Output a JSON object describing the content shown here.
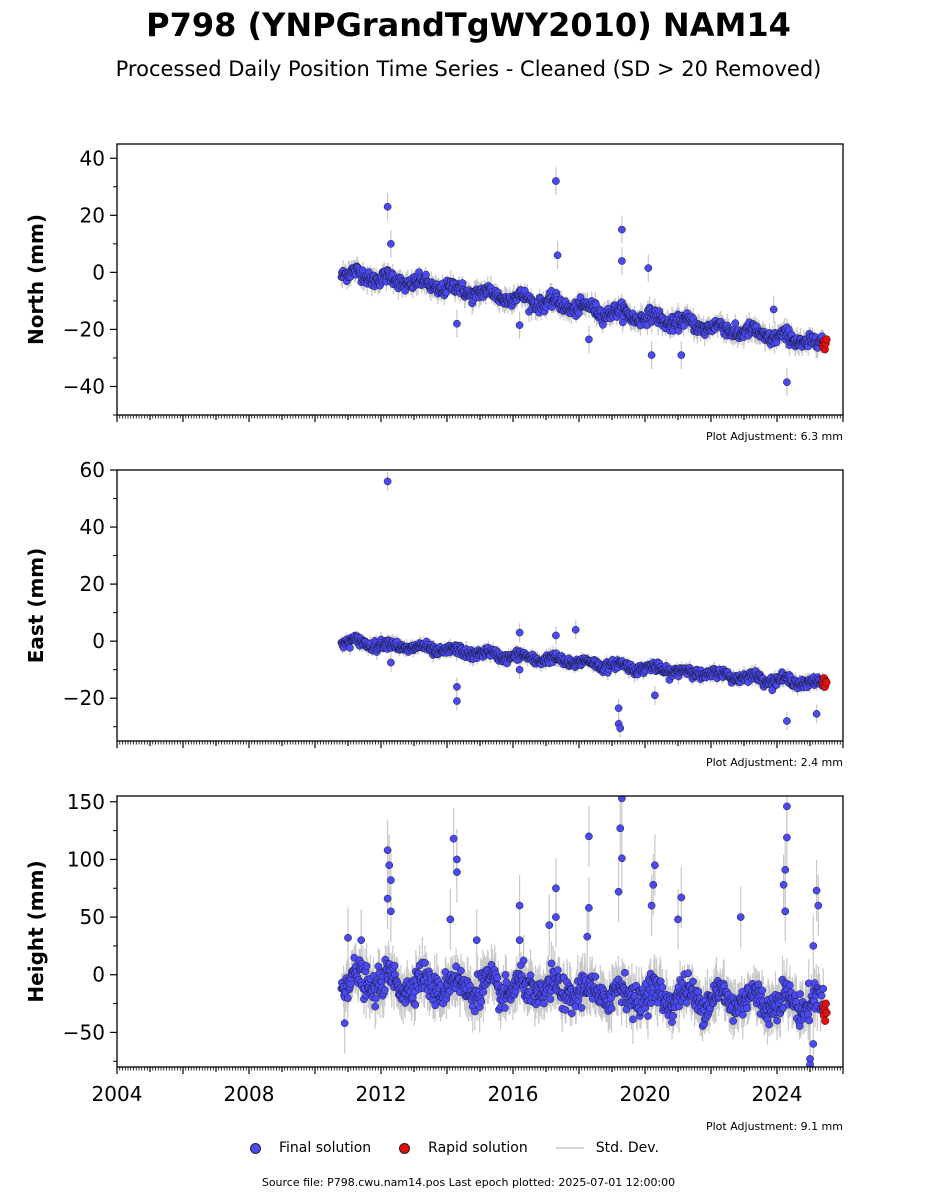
{
  "title": "P798 (YNPGrandTgWY2010) NAM14",
  "subtitle": "Processed Daily Position Time Series - Cleaned (SD > 20 Removed)",
  "legend": {
    "final": "Final solution",
    "rapid": "Rapid solution",
    "std": "Std. Dev."
  },
  "colors": {
    "final": "#4a4af0",
    "rapid": "#e01010",
    "std": "#c8c8c8"
  },
  "footer": "Source file: P798.cwu.nam14.pos  Last epoch plotted: 2025-07-01 12:00:00",
  "chart_data": [
    {
      "type": "scatter",
      "ylabel": "North (mm)",
      "xlim": [
        2004,
        2026
      ],
      "ylim": [
        -50,
        45
      ],
      "yticks": [
        -40,
        -20,
        0,
        20,
        40
      ],
      "yticklabels": [
        "−40",
        "−20",
        "0",
        "20",
        "40"
      ],
      "adjustment": "Plot Adjustment: 6.3 mm",
      "trend": {
        "start": [
          2010.8,
          0
        ],
        "end": [
          2025.4,
          -25
        ]
      },
      "scatter_sd": 2.2,
      "outliers": [
        [
          2012.2,
          23
        ],
        [
          2012.3,
          10
        ],
        [
          2017.3,
          32
        ],
        [
          2017.35,
          6
        ],
        [
          2019.3,
          15
        ],
        [
          2019.3,
          4
        ],
        [
          2020.1,
          1.5
        ],
        [
          2018.3,
          -23.5
        ],
        [
          2024.3,
          -38.5
        ],
        [
          2014.3,
          -18
        ],
        [
          2016.2,
          -18.5
        ],
        [
          2021.1,
          -29
        ],
        [
          2020.2,
          -29
        ],
        [
          2023.9,
          -13
        ]
      ],
      "rapid": {
        "x_range": [
          2025.4,
          2025.5
        ],
        "y": [
          -26,
          -24,
          -27,
          -25,
          -23.5
        ]
      }
    },
    {
      "type": "scatter",
      "ylabel": "East (mm)",
      "xlim": [
        2004,
        2026
      ],
      "ylim": [
        -35,
        60
      ],
      "yticks": [
        -20,
        0,
        20,
        40,
        60
      ],
      "yticklabels": [
        "−20",
        "0",
        "20",
        "40",
        "60"
      ],
      "adjustment": "Plot Adjustment: 2.4 mm",
      "trend": {
        "start": [
          2010.8,
          0
        ],
        "end": [
          2025.4,
          -15
        ]
      },
      "scatter_sd": 1.5,
      "outliers": [
        [
          2012.2,
          56
        ],
        [
          2014.3,
          -21
        ],
        [
          2014.3,
          -16
        ],
        [
          2019.2,
          -29
        ],
        [
          2019.25,
          -30.5
        ],
        [
          2019.2,
          -23.5
        ],
        [
          2024.3,
          -28
        ],
        [
          2025.2,
          -25.5
        ],
        [
          2017.9,
          4
        ],
        [
          2017.3,
          2
        ],
        [
          2016.2,
          3
        ],
        [
          2020.3,
          -19
        ],
        [
          2012.3,
          -7.5
        ],
        [
          2016.2,
          -10
        ]
      ],
      "rapid": {
        "x_range": [
          2025.4,
          2025.5
        ],
        "y": [
          -15,
          -13,
          -16,
          -14,
          -14.5
        ]
      }
    },
    {
      "type": "scatter",
      "ylabel": "Height (mm)",
      "xlim": [
        2004,
        2026
      ],
      "ylim": [
        -80,
        155
      ],
      "yticks": [
        -50,
        0,
        50,
        100,
        150
      ],
      "yticklabels": [
        "−50",
        "0",
        "50",
        "100",
        "150"
      ],
      "xticks": [
        2004,
        2008,
        2012,
        2016,
        2020,
        2024
      ],
      "xticklabels": [
        "2004",
        "2008",
        "2012",
        "2016",
        "2020",
        "2024"
      ],
      "adjustment": "Plot Adjustment: 9.1 mm",
      "trend": {
        "start": [
          2010.8,
          -5
        ],
        "end": [
          2025.4,
          -25
        ]
      },
      "scatter_sd": 12,
      "outliers": [
        [
          2012.2,
          108
        ],
        [
          2012.25,
          95
        ],
        [
          2012.3,
          82
        ],
        [
          2012.2,
          66
        ],
        [
          2012.3,
          55
        ],
        [
          2014.2,
          118
        ],
        [
          2014.3,
          100
        ],
        [
          2014.3,
          89
        ],
        [
          2014.1,
          48
        ],
        [
          2018.3,
          120
        ],
        [
          2018.3,
          58
        ],
        [
          2018.25,
          33
        ],
        [
          2019.3,
          153
        ],
        [
          2019.25,
          127
        ],
        [
          2019.3,
          101
        ],
        [
          2019.2,
          72
        ],
        [
          2017.3,
          75
        ],
        [
          2017.3,
          50
        ],
        [
          2017.1,
          43
        ],
        [
          2020.3,
          95
        ],
        [
          2020.25,
          78
        ],
        [
          2020.2,
          60
        ],
        [
          2021.1,
          67
        ],
        [
          2021.0,
          48
        ],
        [
          2016.2,
          60
        ],
        [
          2016.2,
          30
        ],
        [
          2022.9,
          50
        ],
        [
          2024.3,
          146
        ],
        [
          2024.3,
          119
        ],
        [
          2024.25,
          91
        ],
        [
          2024.2,
          78
        ],
        [
          2024.25,
          55
        ],
        [
          2025.2,
          73
        ],
        [
          2025.25,
          60
        ],
        [
          2025.1,
          25
        ],
        [
          2011.0,
          32
        ],
        [
          2011.4,
          30
        ],
        [
          2014.9,
          30
        ],
        [
          2025.0,
          -73
        ],
        [
          2025.0,
          -78
        ],
        [
          2025.1,
          -60
        ],
        [
          2015.1,
          -15
        ],
        [
          2010.9,
          -42
        ]
      ],
      "rapid": {
        "x_range": [
          2025.4,
          2025.5
        ],
        "y": [
          -28,
          -35,
          -30,
          -40,
          -25,
          -33
        ]
      }
    }
  ]
}
